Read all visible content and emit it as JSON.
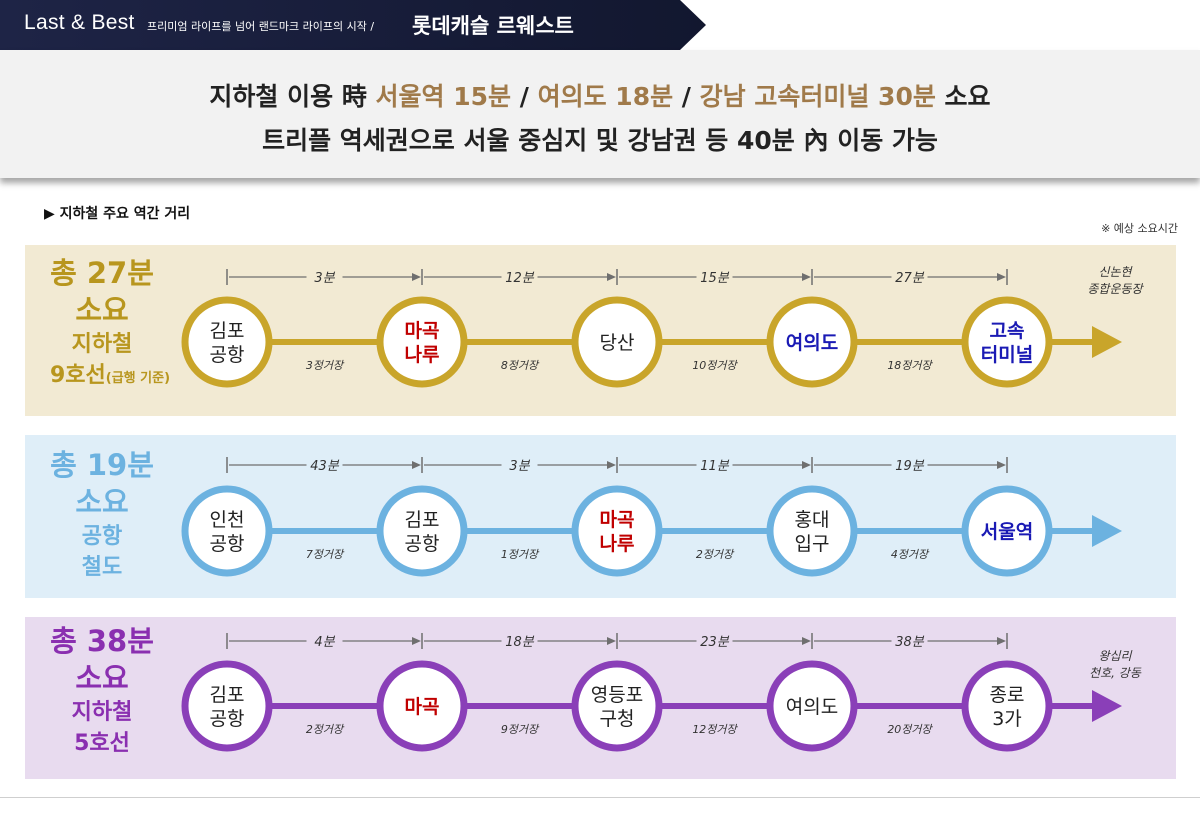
{
  "header": {
    "brand": "Last & Best",
    "slogan": "프리미엄 라이프를 넘어 랜드마크 라이프의 시작 /",
    "project": "롯데캐슬 르웨스트"
  },
  "headline": {
    "line1_a": "지하철 이용 時 ",
    "line1_b": "서울역 15분",
    "line1_c": " / ",
    "line1_d": "여의도 18분",
    "line1_e": " / ",
    "line1_f": "강남 고속터미널 30분",
    "line1_g": " 소요",
    "line2": "트리플 역세권으로 서울 중심지 및 강남권 등 40분 內 이동 가능"
  },
  "section_title": "▶ 지하철 주요 역간 거리",
  "note": "※ 예상 소요시간",
  "colors": {
    "gold": "#c9a52a",
    "blue": "#6cb2e0",
    "purple": "#8a3fb8",
    "red": "#c00000",
    "navy": "#1a1ab4"
  },
  "routes": [
    {
      "id": "line9",
      "theme": "gold",
      "label_lines": [
        {
          "text": "총 27분",
          "size": "big"
        },
        {
          "text": "소요",
          "size": "big"
        },
        {
          "text": "지하철",
          "size": "mid"
        },
        {
          "text": "9호선",
          "size": "mid",
          "suffix": "(급행 기준)"
        }
      ],
      "stations": [
        {
          "lines": [
            "김포",
            "공항"
          ],
          "color": "dark"
        },
        {
          "lines": [
            "마곡",
            "나루"
          ],
          "color": "red"
        },
        {
          "lines": [
            "당산"
          ],
          "color": "dark"
        },
        {
          "lines": [
            "여의도"
          ],
          "color": "navy"
        },
        {
          "lines": [
            "고속",
            "터미널"
          ],
          "color": "navy"
        }
      ],
      "times": [
        "3분",
        "12분",
        "15분",
        "27분"
      ],
      "stops": [
        "3정거장",
        "8정거장",
        "10정거장",
        "18정거장"
      ],
      "endpoint": [
        "신논현",
        "종합운동장"
      ]
    },
    {
      "id": "airport",
      "theme": "blue",
      "label_lines": [
        {
          "text": "총 19분",
          "size": "big"
        },
        {
          "text": "소요",
          "size": "big"
        },
        {
          "text": "공항",
          "size": "mid"
        },
        {
          "text": "철도",
          "size": "mid"
        }
      ],
      "stations": [
        {
          "lines": [
            "인천",
            "공항"
          ],
          "color": "dark"
        },
        {
          "lines": [
            "김포",
            "공항"
          ],
          "color": "dark"
        },
        {
          "lines": [
            "마곡",
            "나루"
          ],
          "color": "red"
        },
        {
          "lines": [
            "홍대",
            "입구"
          ],
          "color": "dark"
        },
        {
          "lines": [
            "서울역"
          ],
          "color": "navy"
        }
      ],
      "times": [
        "43분",
        "3분",
        "11분",
        "19분"
      ],
      "stops": [
        "7정거장",
        "1정거장",
        "2정거장",
        "4정거장"
      ],
      "endpoint": []
    },
    {
      "id": "line5",
      "theme": "purple",
      "label_lines": [
        {
          "text": "총 38분",
          "size": "big"
        },
        {
          "text": "소요",
          "size": "big"
        },
        {
          "text": "지하철",
          "size": "mid"
        },
        {
          "text": "5호선",
          "size": "mid"
        }
      ],
      "stations": [
        {
          "lines": [
            "김포",
            "공항"
          ],
          "color": "dark"
        },
        {
          "lines": [
            "마곡"
          ],
          "color": "red"
        },
        {
          "lines": [
            "영등포",
            "구청"
          ],
          "color": "dark"
        },
        {
          "lines": [
            "여의도"
          ],
          "color": "dark"
        },
        {
          "lines": [
            "종로",
            "3가"
          ],
          "color": "dark"
        }
      ],
      "times": [
        "4분",
        "18분",
        "23분",
        "38분"
      ],
      "stops": [
        "2정거장",
        "9정거장",
        "12정거장",
        "20정거장"
      ],
      "endpoint": [
        "왕십리",
        "천호, 강동"
      ]
    }
  ]
}
